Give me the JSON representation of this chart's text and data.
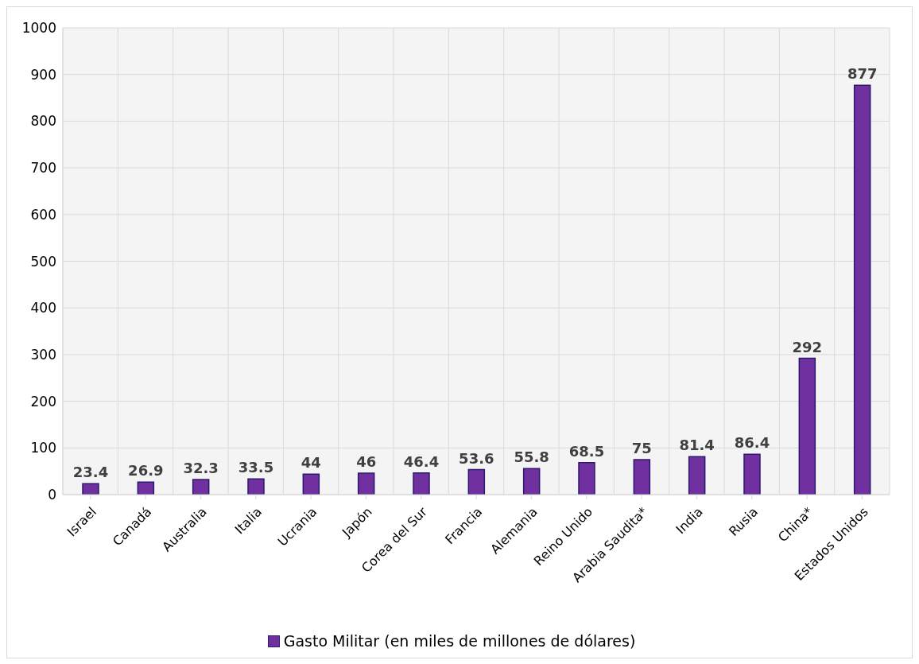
{
  "chart_data": {
    "type": "bar",
    "categories": [
      "Israel",
      "Canadá",
      "Australia",
      "Italia",
      "Ucrania",
      "Japón",
      "Corea del Sur",
      "Francia",
      "Alemania",
      "Reino Unido",
      "Arabia Saudita*",
      "India",
      "Rusia",
      "China*",
      "Estados Unidos"
    ],
    "series": [
      {
        "name": "Gasto Militar (en miles de millones de dólares)",
        "color": "#7030a0",
        "values": [
          23.4,
          26.9,
          32.3,
          33.5,
          44,
          46,
          46.4,
          53.6,
          55.8,
          68.5,
          75,
          81.4,
          86.4,
          292,
          877
        ]
      }
    ],
    "ylim": [
      0,
      1000
    ],
    "yticks": [
      0,
      100,
      200,
      300,
      400,
      500,
      600,
      700,
      800,
      900,
      1000
    ],
    "grid": true,
    "legend": "bottom",
    "data_labels": true
  }
}
